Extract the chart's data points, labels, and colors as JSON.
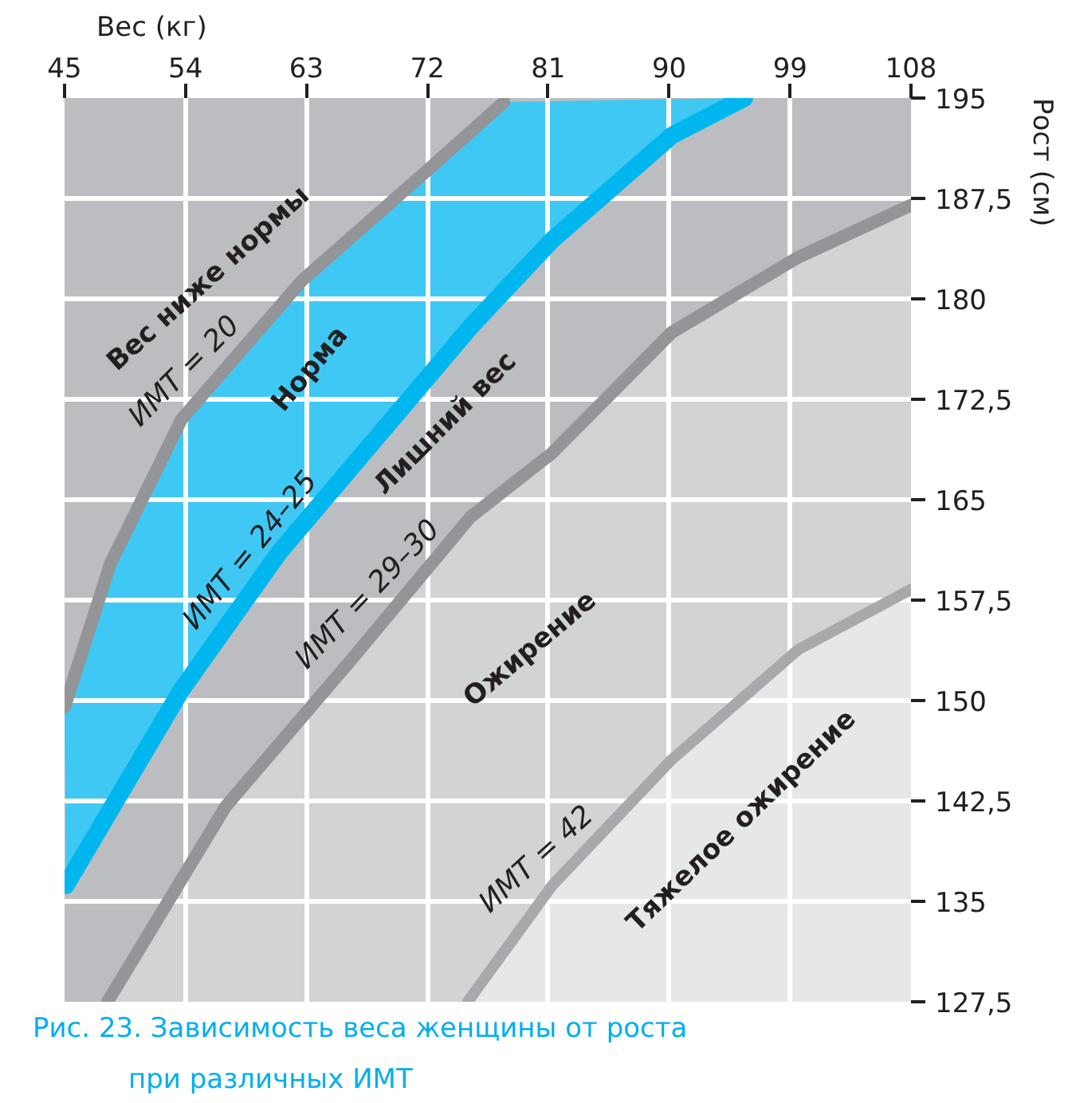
{
  "chart_data": {
    "type": "line",
    "title": "Рис. 23. Зависимость веса женщины от роста при различных ИМТ",
    "xlabel": "Вес (кг)",
    "ylabel": "Рост (см)",
    "xlim": [
      45,
      108
    ],
    "xticks": [
      45,
      54,
      63,
      72,
      81,
      90,
      99,
      108
    ],
    "ylim": [
      127.5,
      195
    ],
    "yticks": [
      {
        "value": 127.5,
        "label": "127,5"
      },
      135,
      {
        "value": 142.5,
        "label": "142,5"
      },
      150,
      {
        "value": 157.5,
        "label": "157,5"
      },
      165,
      {
        "value": 172.5,
        "label": "172,5"
      },
      180,
      {
        "value": 187.5,
        "label": "187,5"
      },
      195
    ],
    "grid": true,
    "series": [
      {
        "name": "ИМТ = 20",
        "color": "#939598",
        "x": [
          45,
          48.4,
          53.7,
          62.7,
          72.0,
          77.7
        ],
        "values": [
          149.5,
          160.2,
          171.0,
          181.4,
          189.6,
          194.7
        ]
      },
      {
        "name": "ИМТ = 24–25",
        "color": "#00b6ef",
        "x": [
          45.1,
          53.7,
          61.0,
          72.0,
          75.2,
          81.3,
          90.2,
          95.6
        ],
        "values": [
          136.2,
          150.8,
          161.1,
          174.1,
          177.9,
          184.4,
          192.2,
          195
        ]
      },
      {
        "name": "ИМТ = 29–30",
        "color": "#949599",
        "x": [
          48.2,
          57.0,
          66.3,
          75.2,
          81.3,
          90.2,
          99.6,
          108
        ],
        "values": [
          127.5,
          142.1,
          153.0,
          163.7,
          168.5,
          177.5,
          183.1,
          187.0
        ]
      },
      {
        "name": "ИМТ = 42",
        "color": "#a7a9ac",
        "x": [
          75.0,
          81.3,
          90.2,
          99.6,
          108
        ],
        "values": [
          127.5,
          136.2,
          145.6,
          153.8,
          158.3
        ]
      }
    ],
    "annotations": [
      "Вес ниже нормы",
      "Норма",
      "Лишний вес",
      "Ожирение",
      "Тяжелое ожирение"
    ]
  }
}
